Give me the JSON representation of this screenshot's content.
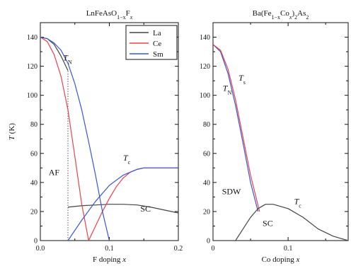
{
  "chart_data": [
    {
      "type": "line",
      "title": "LnFeAsO",
      "title_sub": "1−x",
      "title_mid": "F",
      "title_sub2": "x",
      "xlabel": "F doping ",
      "xlabel_italic": "x",
      "ylabel": "T",
      "ylabel_unit": " (K)",
      "xlim": [
        0,
        0.2
      ],
      "ylim": [
        0,
        150
      ],
      "xticks": [
        0,
        0.05,
        0.1,
        0.15,
        0.2
      ],
      "xtick_labels": [
        "0.0",
        "",
        "0.1",
        "",
        "0.2"
      ],
      "yticks": [
        0,
        10,
        20,
        30,
        40,
        50,
        60,
        70,
        80,
        90,
        100,
        110,
        120,
        130,
        140,
        150
      ],
      "ytick_labels": [
        "0",
        "",
        "20",
        "",
        "40",
        "",
        "60",
        "",
        "80",
        "",
        "100",
        "",
        "120",
        "",
        "140",
        ""
      ],
      "grid": false,
      "legend": "top-right",
      "series": [
        {
          "name": "La",
          "color": "#444444",
          "segments": [
            {
              "label": "T_N",
              "x": [
                0,
                0.01,
                0.02,
                0.03,
                0.04
              ],
              "y": [
                140,
                139,
                135,
                127,
                117
              ]
            },
            {
              "label": "T_c",
              "x": [
                0.04,
                0.06,
                0.08,
                0.1,
                0.12,
                0.14,
                0.16,
                0.18,
                0.2
              ],
              "y": [
                23,
                24,
                24.5,
                25,
                25,
                24.5,
                23,
                21,
                19
              ]
            }
          ]
        },
        {
          "name": "Ce",
          "color": "#e8434a",
          "segments": [
            {
              "label": "T_N",
              "x": [
                0,
                0.01,
                0.02,
                0.03,
                0.04,
                0.05,
                0.06,
                0.07
              ],
              "y": [
                140,
                137,
                128,
                113,
                90,
                58,
                25,
                0
              ]
            },
            {
              "label": "T_c",
              "x": [
                0.07,
                0.08,
                0.09,
                0.1,
                0.11,
                0.12,
                0.13,
                0.14,
                0.15,
                0.2
              ],
              "y": [
                0,
                10,
                20,
                29,
                37,
                43,
                47,
                49,
                50,
                50
              ]
            }
          ]
        },
        {
          "name": "Sm",
          "color": "#3a56d6",
          "segments": [
            {
              "label": "T_N",
              "x": [
                0,
                0.01,
                0.02,
                0.03,
                0.04,
                0.05,
                0.06,
                0.07,
                0.08,
                0.09,
                0.1
              ],
              "y": [
                140,
                139,
                136,
                131,
                122,
                108,
                90,
                68,
                45,
                20,
                0
              ]
            },
            {
              "label": "T_c",
              "x": [
                0.04,
                0.06,
                0.08,
                0.1,
                0.12,
                0.14,
                0.15,
                0.2
              ],
              "y": [
                0,
                14,
                27,
                38,
                45,
                49,
                50,
                50
              ]
            }
          ]
        }
      ],
      "dotted_line": {
        "x": 0.04,
        "y": [
          0,
          117
        ],
        "color": "#555555"
      },
      "annotations": [
        {
          "text": "T",
          "sub": "N",
          "x": 0.033,
          "y": 124
        },
        {
          "text": "T",
          "sub": "c",
          "x": 0.12,
          "y": 55
        },
        {
          "text": "AF",
          "sub": "",
          "x": 0.012,
          "y": 45
        },
        {
          "text": "SC",
          "sub": "",
          "x": 0.145,
          "y": 20
        }
      ]
    },
    {
      "type": "line",
      "title": "Ba(Fe",
      "title_sub": "1−x",
      "title_mid": "Co",
      "title_sub2": "x",
      "title_end": ")",
      "title_sub3": "2",
      "title_end2": "As",
      "title_sub4": "2",
      "xlabel": "Co doping ",
      "xlabel_italic": "x",
      "xlim": [
        0,
        0.18
      ],
      "ylim": [
        0,
        150
      ],
      "xticks": [
        0,
        0.05,
        0.1,
        0.15
      ],
      "xtick_labels": [
        "0",
        "",
        "0.1",
        ""
      ],
      "yticks": [
        0,
        10,
        20,
        30,
        40,
        50,
        60,
        70,
        80,
        90,
        100,
        110,
        120,
        130,
        140,
        150
      ],
      "ytick_labels": [
        "0",
        "",
        "20",
        "",
        "40",
        "",
        "60",
        "",
        "80",
        "",
        "100",
        "",
        "120",
        "",
        "140",
        ""
      ],
      "grid": false,
      "series": [
        {
          "name": "T_N",
          "color": "#3a56d6",
          "x": [
            0,
            0.01,
            0.02,
            0.03,
            0.04,
            0.05,
            0.06
          ],
          "y": [
            135,
            130,
            115,
            93,
            67,
            40,
            20
          ]
        },
        {
          "name": "T_s",
          "color": "#e8434a",
          "x": [
            0,
            0.01,
            0.02,
            0.03,
            0.04,
            0.05,
            0.062
          ],
          "y": [
            135,
            131,
            118,
            97,
            71,
            45,
            20
          ]
        },
        {
          "name": "T_c",
          "color": "#444444",
          "x": [
            0.03,
            0.04,
            0.05,
            0.06,
            0.07,
            0.08,
            0.1,
            0.12,
            0.14,
            0.16,
            0.18
          ],
          "y": [
            0,
            8,
            16,
            22,
            25,
            25,
            22,
            16,
            8,
            3,
            0
          ]
        }
      ],
      "annotations": [
        {
          "text": "T",
          "sub": "s",
          "x": 0.034,
          "y": 110
        },
        {
          "text": "T",
          "sub": "N",
          "x": 0.013,
          "y": 103
        },
        {
          "text": "SDW",
          "sub": "",
          "x": 0.012,
          "y": 32
        },
        {
          "text": "SC",
          "sub": "",
          "x": 0.066,
          "y": 10
        },
        {
          "text": "T",
          "sub": "c",
          "x": 0.108,
          "y": 25
        }
      ]
    }
  ]
}
